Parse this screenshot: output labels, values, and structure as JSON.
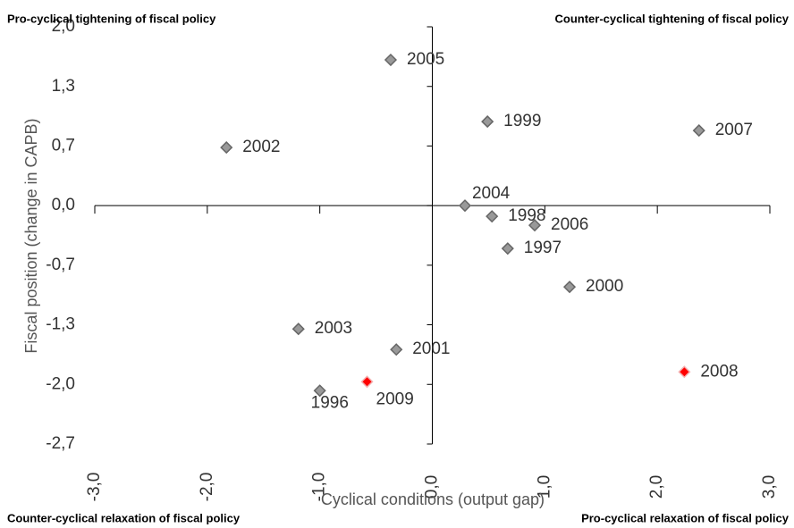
{
  "chart_data": {
    "type": "scatter",
    "x_label": "Cyclical conditions (output gap)",
    "y_label": "Fiscal position (change in CAPB)",
    "annotations": [
      "Pro-cyclical tightening of fiscal policy",
      "Counter-cyclical tightening of fiscal policy",
      "Counter-cyclical relaxation of fiscal policy",
      "Pro-cyclical relaxation of fiscal policy"
    ],
    "labels": [
      "2005",
      "1999",
      "2007",
      "2002",
      "2004",
      "1998",
      "2006",
      "1997",
      "2000",
      "2003",
      "2001",
      "2008",
      "2009",
      "1996"
    ],
    "x": [
      -0.37,
      0.49,
      2.37,
      -1.83,
      0.29,
      0.53,
      0.91,
      0.67,
      1.22,
      -1.19,
      -0.32,
      2.24,
      -0.58,
      -1.0
    ],
    "values": [
      1.63,
      0.94,
      0.84,
      0.65,
      0.0,
      -0.12,
      -0.22,
      -0.48,
      -0.91,
      -1.38,
      -1.61,
      -1.86,
      -1.97,
      -2.07
    ],
    "colors": [
      "#999999",
      "#999999",
      "#999999",
      "#999999",
      "#999999",
      "#999999",
      "#999999",
      "#999999",
      "#999999",
      "#999999",
      "#999999",
      "#ff0000",
      "#ff0000",
      "#999999"
    ],
    "xlim": [
      -3,
      3
    ],
    "ylim": [
      -2.667,
      2.0
    ],
    "xticks": [
      {
        "value": -3,
        "label": "-3,0"
      },
      {
        "value": -2,
        "label": "-2,0"
      },
      {
        "value": -1,
        "label": "-1,0"
      },
      {
        "value": 0,
        "label": "0,0"
      },
      {
        "value": 1,
        "label": "1,0"
      },
      {
        "value": 2,
        "label": "2,0"
      },
      {
        "value": 3,
        "label": "3,0"
      }
    ],
    "yticks": [
      {
        "value": 2.0,
        "label": "2,0"
      },
      {
        "value": 1.333,
        "label": "1,3"
      },
      {
        "value": 0.667,
        "label": "0,7"
      },
      {
        "value": 0,
        "label": "0,0"
      },
      {
        "value": -0.667,
        "label": "-0,7"
      },
      {
        "value": -1.333,
        "label": "-1,3"
      },
      {
        "value": -2.0,
        "label": "-2,0"
      },
      {
        "value": -2.667,
        "label": "-2,7"
      }
    ]
  }
}
